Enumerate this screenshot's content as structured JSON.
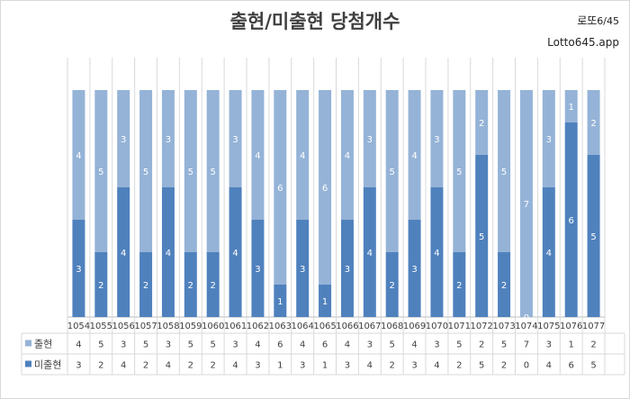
{
  "header": {
    "brand_name": "로또",
    "brand_suffix": "6/45",
    "brand_url": "Lotto645.app"
  },
  "chart_data": {
    "type": "bar",
    "stacked": true,
    "title": "출현/미출현 당첨개수",
    "categories": [
      "1054",
      "1055",
      "1056",
      "1057",
      "1058",
      "1059",
      "1060",
      "1061",
      "1062",
      "1063",
      "1064",
      "1065",
      "1066",
      "1067",
      "1068",
      "1069",
      "1070",
      "1071",
      "1072",
      "1073",
      "1074",
      "1075",
      "1076",
      "1077"
    ],
    "series": [
      {
        "name": "미출현",
        "color": "#4f81bd",
        "values": [
          3,
          2,
          4,
          2,
          4,
          2,
          2,
          4,
          3,
          1,
          3,
          1,
          3,
          4,
          2,
          3,
          4,
          2,
          5,
          2,
          0,
          4,
          6,
          5
        ]
      },
      {
        "name": "출현",
        "color": "#95b3d7",
        "values": [
          4,
          5,
          3,
          5,
          3,
          5,
          5,
          3,
          4,
          6,
          4,
          6,
          4,
          3,
          5,
          4,
          3,
          5,
          2,
          5,
          7,
          3,
          1,
          2
        ]
      }
    ],
    "ylim": [
      0,
      7
    ],
    "grid": true,
    "legend": "data-table-left"
  }
}
